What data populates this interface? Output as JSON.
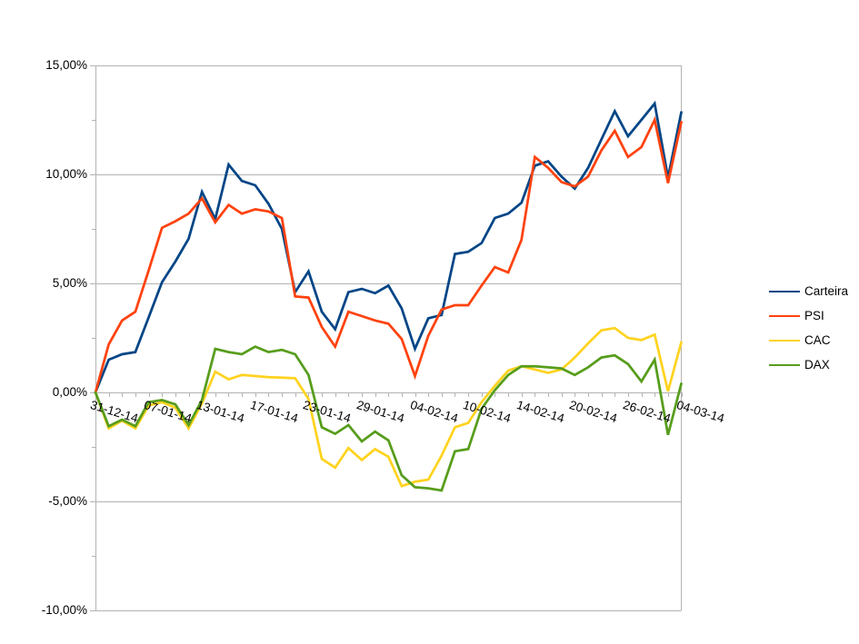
{
  "chart_data": {
    "type": "line",
    "title": "",
    "y_axis": {
      "min": -10,
      "max": 15,
      "step": 5,
      "tick_labels": [
        "15,00%",
        "10,00%",
        "5,00%",
        "0,00%",
        "-5,00%",
        "-10,00%"
      ],
      "number_format": "percent-comma-decimal"
    },
    "x_axis": {
      "visible_labels": [
        "31-12-14",
        "07-01-14",
        "13-01-14",
        "17-01-14",
        "23-01-14",
        "29-01-14",
        "04-02-14",
        "10-02-14",
        "14-02-14",
        "20-02-14",
        "26-02-14",
        "04-03-14"
      ],
      "label_indices": [
        0,
        4,
        8,
        12,
        16,
        20,
        24,
        28,
        32,
        36,
        40,
        44
      ],
      "categories": [
        "31-12",
        "02-01",
        "03-01",
        "06-01",
        "07-01",
        "08-01",
        "09-01",
        "10-01",
        "13-01",
        "14-01",
        "15-01",
        "16-01",
        "17-01",
        "20-01",
        "21-01",
        "22-01",
        "23-01",
        "24-01",
        "27-01",
        "28-01",
        "29-01",
        "30-01",
        "31-01",
        "03-02",
        "04-02",
        "05-02",
        "06-02",
        "07-02",
        "10-02",
        "11-02",
        "12-02",
        "13-02",
        "14-02",
        "17-02",
        "18-02",
        "19-02",
        "20-02",
        "21-02",
        "24-02",
        "25-02",
        "26-02",
        "27-02",
        "28-02",
        "03-03",
        "04-03"
      ]
    },
    "series": [
      {
        "name": "Carteira",
        "color": "#004586",
        "values": [
          0,
          1.5,
          1.75,
          1.85,
          3.45,
          5.05,
          6.0,
          7.05,
          9.2,
          7.95,
          10.45,
          9.7,
          9.5,
          8.65,
          7.5,
          4.6,
          5.55,
          3.7,
          2.9,
          4.6,
          4.75,
          4.55,
          4.9,
          3.85,
          2.0,
          3.4,
          3.55,
          6.35,
          6.45,
          6.85,
          8.0,
          8.2,
          8.7,
          10.4,
          10.6,
          9.9,
          9.35,
          10.3,
          11.6,
          12.9,
          11.75,
          12.5,
          13.25,
          9.85,
          12.85
        ]
      },
      {
        "name": "PSI",
        "color": "#FF420E",
        "values": [
          0,
          2.2,
          3.3,
          3.7,
          5.6,
          7.55,
          7.85,
          8.2,
          8.9,
          7.8,
          8.6,
          8.2,
          8.4,
          8.3,
          8.0,
          4.4,
          4.35,
          3.0,
          2.1,
          3.7,
          3.5,
          3.3,
          3.15,
          2.45,
          0.75,
          2.6,
          3.8,
          4.0,
          4.0,
          4.9,
          5.75,
          5.5,
          7.0,
          10.8,
          10.3,
          9.65,
          9.45,
          9.9,
          11.1,
          12.0,
          10.8,
          11.25,
          12.5,
          9.6,
          12.4
        ]
      },
      {
        "name": "CAC",
        "color": "#FFD320",
        "values": [
          0,
          -1.65,
          -1.3,
          -1.65,
          -0.6,
          -0.45,
          -0.7,
          -1.65,
          -0.5,
          0.95,
          0.6,
          0.8,
          0.75,
          0.7,
          0.68,
          0.65,
          -0.3,
          -3.05,
          -3.45,
          -2.55,
          -3.1,
          -2.6,
          -2.95,
          -4.3,
          -4.1,
          -4.0,
          -2.9,
          -1.6,
          -1.4,
          -0.45,
          0.3,
          1.0,
          1.2,
          1.05,
          0.9,
          1.05,
          1.6,
          2.25,
          2.85,
          2.95,
          2.5,
          2.4,
          2.65,
          0.05,
          2.3
        ]
      },
      {
        "name": "DAX",
        "color": "#579D1C",
        "values": [
          0,
          -1.55,
          -1.25,
          -1.55,
          -0.45,
          -0.35,
          -0.55,
          -1.5,
          -0.35,
          2.0,
          1.85,
          1.75,
          2.1,
          1.85,
          1.95,
          1.75,
          0.8,
          -1.6,
          -1.9,
          -1.5,
          -2.25,
          -1.8,
          -2.2,
          -3.8,
          -4.35,
          -4.4,
          -4.5,
          -2.7,
          -2.6,
          -0.75,
          0.1,
          0.8,
          1.2,
          1.2,
          1.15,
          1.1,
          0.8,
          1.15,
          1.6,
          1.7,
          1.3,
          0.5,
          1.5,
          -1.95,
          0.4
        ]
      }
    ],
    "legend": {
      "position": "right",
      "entries": [
        "Carteira",
        "PSI",
        "CAC",
        "DAX"
      ]
    },
    "style": {
      "grid_color": "#b3b3b3",
      "background": "#ffffff",
      "text_color": "#000000"
    }
  }
}
